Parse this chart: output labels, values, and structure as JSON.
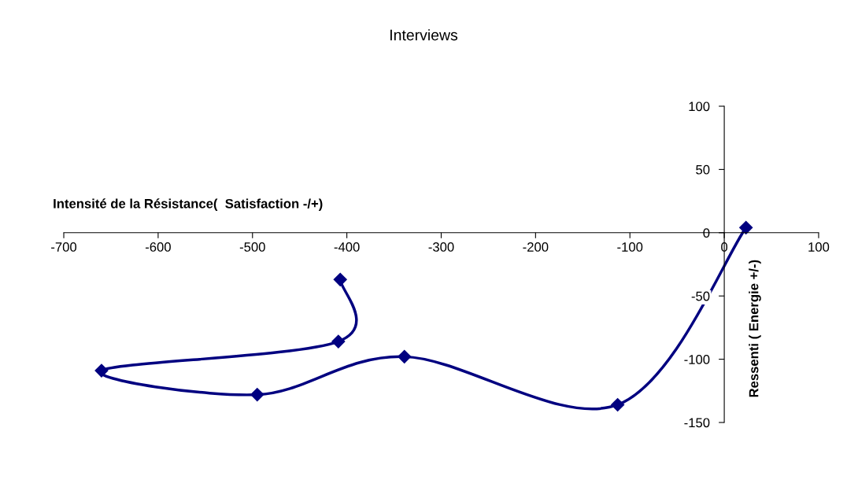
{
  "chart_data": {
    "type": "line",
    "title": "Interviews",
    "xlabel": "Intensité de la Résistance(  Satisfaction -/+)",
    "ylabel": "Ressenti ( Energie +/-)",
    "series": [
      {
        "color": "#000080",
        "x": [
          -407,
          -409,
          -660,
          -495,
          -339,
          -113,
          23
        ],
        "values": [
          -37,
          -86,
          -109,
          -128,
          -98,
          -136,
          4
        ]
      }
    ],
    "xlim": [
      -700,
      100
    ],
    "xticks": [
      -700,
      -600,
      -500,
      -400,
      -300,
      -200,
      -100,
      0,
      100
    ],
    "ylim": [
      -150,
      100
    ],
    "yticks": [
      -150,
      -100,
      -50,
      0,
      50,
      100
    ],
    "marker": "diamond",
    "line_style": "solid",
    "grid": false,
    "legend": false
  }
}
